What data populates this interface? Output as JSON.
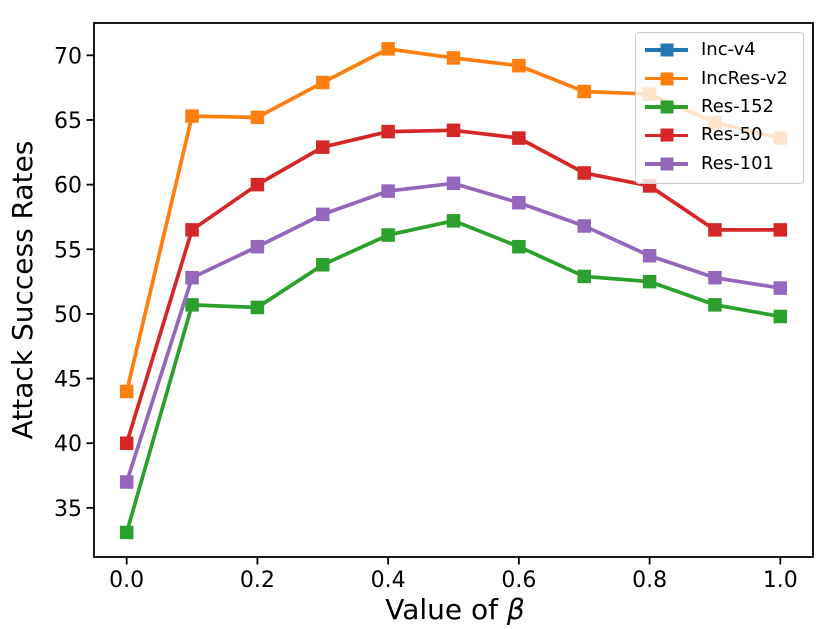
{
  "figure": {
    "background": "#ffffff"
  },
  "chart_data": {
    "type": "line",
    "title": "",
    "xlabel": "Value of β",
    "xlabel_prefix": "Value of ",
    "xlabel_symbol": "β",
    "ylabel": "Attack Success Rates",
    "x": [
      0.0,
      0.1,
      0.2,
      0.3,
      0.4,
      0.5,
      0.6,
      0.7,
      0.8,
      0.9,
      1.0
    ],
    "xlim": [
      -0.05,
      1.05
    ],
    "ylim": [
      31.2,
      72.5
    ],
    "xticks": [
      0.0,
      0.2,
      0.4,
      0.6,
      0.8,
      1.0
    ],
    "xtick_labels": [
      "0.0",
      "0.2",
      "0.4",
      "0.6",
      "0.8",
      "1.0"
    ],
    "yticks": [
      35,
      40,
      45,
      50,
      55,
      60,
      65,
      70
    ],
    "ytick_labels": [
      "35",
      "40",
      "45",
      "50",
      "55",
      "60",
      "65",
      "70"
    ],
    "grid": false,
    "marker": "square",
    "legend": {
      "position": "upper right",
      "entries": [
        {
          "label": "Inc-v4",
          "color": "#1f77b4"
        },
        {
          "label": "IncRes-v2",
          "color": "#ff7f0e"
        },
        {
          "label": "Res-152",
          "color": "#2ca02c"
        },
        {
          "label": "Res-50",
          "color": "#d62728"
        },
        {
          "label": "Res-101",
          "color": "#9467bd"
        }
      ]
    },
    "series": [
      {
        "name": "Inc-v4",
        "color": "#1f77b4",
        "marker": "square",
        "values": [],
        "visible_in_plot": false
      },
      {
        "name": "IncRes-v2",
        "color": "#ff7f0e",
        "marker": "square",
        "values": [
          44.0,
          65.3,
          65.2,
          67.9,
          70.5,
          69.8,
          69.2,
          67.2,
          67.0,
          64.8,
          63.6
        ]
      },
      {
        "name": "Res-152",
        "color": "#2ca02c",
        "marker": "square",
        "values": [
          33.1,
          50.7,
          50.5,
          53.8,
          56.1,
          57.2,
          55.2,
          52.9,
          52.5,
          50.7,
          49.8
        ]
      },
      {
        "name": "Res-50",
        "color": "#d62728",
        "marker": "square",
        "values": [
          40.0,
          56.5,
          60.0,
          62.9,
          64.1,
          64.2,
          63.6,
          60.9,
          59.9,
          56.5,
          56.5
        ]
      },
      {
        "name": "Res-101",
        "color": "#9467bd",
        "marker": "square",
        "values": [
          37.0,
          52.8,
          55.2,
          57.7,
          59.5,
          60.1,
          58.6,
          56.8,
          54.5,
          52.8,
          52.0
        ]
      }
    ]
  }
}
